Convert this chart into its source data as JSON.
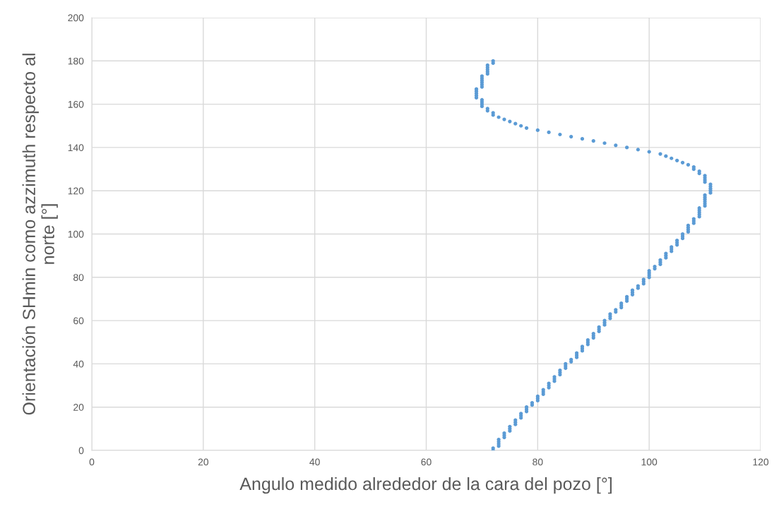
{
  "chart_data": {
    "type": "scatter",
    "xlabel": "Angulo medido alrededor de la cara del pozo [°]",
    "ylabel": "Orientación SHmin como azzimuth respecto al\nnorte [°]",
    "xlim": [
      0,
      120
    ],
    "xticks": [
      0,
      20,
      40,
      60,
      80,
      100,
      120
    ],
    "ylim": [
      0,
      200
    ],
    "yticks": [
      0,
      20,
      40,
      60,
      80,
      100,
      120,
      140,
      160,
      180,
      200
    ],
    "grid": true,
    "marker": "circle",
    "x": [
      72,
      72,
      73,
      73,
      73,
      73,
      74,
      74,
      74,
      75,
      75,
      75,
      76,
      76,
      76,
      77,
      77,
      77,
      78,
      78,
      78,
      79,
      79,
      80,
      80,
      80,
      81,
      81,
      81,
      82,
      82,
      82,
      83,
      83,
      83,
      84,
      84,
      84,
      85,
      85,
      85,
      86,
      86,
      87,
      87,
      87,
      88,
      88,
      88,
      89,
      89,
      89,
      90,
      90,
      90,
      91,
      91,
      91,
      92,
      92,
      92,
      93,
      93,
      93,
      94,
      94,
      95,
      95,
      95,
      96,
      96,
      96,
      97,
      97,
      97,
      98,
      98,
      99,
      99,
      99,
      100,
      100,
      100,
      100,
      101,
      101,
      102,
      102,
      102,
      103,
      103,
      103,
      104,
      104,
      104,
      105,
      105,
      105,
      106,
      106,
      106,
      107,
      107,
      107,
      107,
      108,
      108,
      108,
      109,
      109,
      109,
      109,
      109,
      110,
      110,
      110,
      110,
      110,
      110,
      111,
      111,
      111,
      111,
      111,
      110,
      110,
      110,
      110,
      109,
      109,
      108,
      108,
      107,
      106,
      105,
      104,
      103,
      102,
      100,
      98,
      96,
      94,
      92,
      90,
      88,
      86,
      84,
      82,
      80,
      78,
      77,
      76,
      75,
      74,
      73,
      72,
      72,
      71,
      71,
      70,
      70,
      70,
      70,
      69,
      69,
      69,
      69,
      69,
      70,
      70,
      70,
      70,
      70,
      70,
      71,
      71,
      71,
      71,
      71,
      72,
      72
    ],
    "series": [
      {
        "color": "#5b9bd5",
        "values": [
          0,
          1,
          2,
          3,
          4,
          5,
          6,
          7,
          8,
          9,
          10,
          11,
          12,
          13,
          14,
          15,
          16,
          17,
          18,
          19,
          20,
          21,
          22,
          23,
          24,
          25,
          26,
          27,
          28,
          29,
          30,
          31,
          32,
          33,
          34,
          35,
          36,
          37,
          38,
          39,
          40,
          41,
          42,
          43,
          44,
          45,
          46,
          47,
          48,
          49,
          50,
          51,
          52,
          53,
          54,
          55,
          56,
          57,
          58,
          59,
          60,
          61,
          62,
          63,
          64,
          65,
          66,
          67,
          68,
          69,
          70,
          71,
          72,
          73,
          74,
          75,
          76,
          77,
          78,
          79,
          80,
          81,
          82,
          83,
          84,
          85,
          86,
          87,
          88,
          89,
          90,
          91,
          92,
          93,
          94,
          95,
          96,
          97,
          98,
          99,
          100,
          101,
          102,
          103,
          104,
          105,
          106,
          107,
          108,
          109,
          110,
          111,
          112,
          113,
          114,
          115,
          116,
          117,
          118,
          119,
          120,
          121,
          122,
          123,
          124,
          125,
          126,
          127,
          128,
          129,
          130,
          131,
          132,
          133,
          134,
          135,
          136,
          137,
          138,
          139,
          140,
          141,
          142,
          143,
          144,
          145,
          146,
          147,
          148,
          149,
          150,
          151,
          152,
          153,
          154,
          155,
          156,
          157,
          158,
          159,
          160,
          161,
          162,
          163,
          164,
          165,
          166,
          167,
          168,
          169,
          170,
          171,
          172,
          173,
          174,
          175,
          176,
          177,
          178,
          179,
          180
        ]
      }
    ]
  }
}
